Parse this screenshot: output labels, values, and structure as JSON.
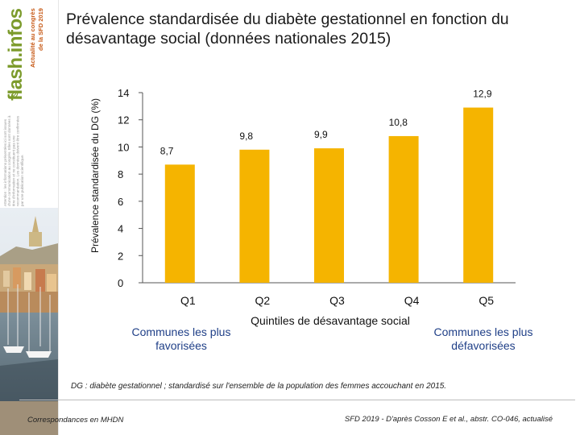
{
  "sidebar": {
    "brand_name": "flash.infos",
    "brand_subtitle_line1": "Actualité au congrès",
    "brand_subtitle_line2": "de la SFD 2019",
    "disclaimer": "Attention : les informations présentées ici sont issues d'une communication au congrès. Elles sont données à titre d'information et ne constituent pas une recommandation. Les données doivent être confirmées par une publication scientifique.",
    "photo_name": "Marseille harbour"
  },
  "title": "Prévalence standardisée du diabète gestationnel en fonction du désavantage social (données nationales 2015)",
  "chart_data": {
    "type": "bar",
    "categories": [
      "Q1",
      "Q2",
      "Q3",
      "Q4",
      "Q5"
    ],
    "values": [
      8.7,
      9.8,
      9.9,
      10.8,
      12.9
    ],
    "value_labels": [
      "8,7",
      "9,8",
      "9,9",
      "10,8",
      "12,9"
    ],
    "ylabel": "Prévalence standardisée du DG (%)",
    "xlabel": "Quintiles de désavantage social",
    "ylim": [
      0,
      14
    ],
    "yticks": [
      0,
      2,
      4,
      6,
      8,
      10,
      12,
      14
    ],
    "bar_color": "#f5b400",
    "grid": false
  },
  "annotations": {
    "left": "Communes les plus favorisées",
    "right": "Communes les plus défavorisées",
    "color": "#1f3f87"
  },
  "footnote": "DG : diabète gestationnel ; standardisé sur l'ensemble de la population des femmes accouchant en 2015.",
  "footer": {
    "left": "Correspondances en MHDN",
    "right": "SFD 2019 - D'après Cosson E et al., abstr. CO-046, actualisé"
  }
}
